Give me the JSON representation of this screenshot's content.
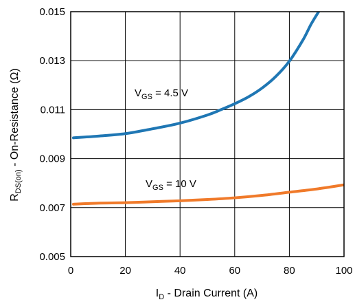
{
  "chart_data": {
    "type": "line",
    "xlabel": {
      "main": "I",
      "sub": "D",
      "rest": " - Drain Current (A)"
    },
    "ylabel": {
      "main": "R",
      "sub": "DS(on)",
      "rest": " - On-Resistance (Ω)"
    },
    "xlim": [
      0,
      100
    ],
    "ylim": [
      0.005,
      0.015
    ],
    "x_ticks": [
      0,
      20,
      40,
      60,
      80,
      100
    ],
    "x_tick_labels": [
      "0",
      "20",
      "40",
      "60",
      "80",
      "100"
    ],
    "y_ticks": [
      0.005,
      0.007,
      0.009,
      0.011,
      0.013,
      0.015
    ],
    "y_tick_labels": [
      "0.005",
      "0.007",
      "0.009",
      "0.011",
      "0.013",
      "0.015"
    ],
    "grid": true,
    "series": [
      {
        "label": {
          "main": "V",
          "sub": "GS",
          "rest": " = 4.5 V"
        },
        "color": "#1f77b4",
        "x": [
          1,
          10,
          20,
          30,
          40,
          50,
          55,
          60,
          65,
          70,
          75,
          80,
          85,
          88,
          91
        ],
        "y": [
          0.00985,
          0.00992,
          0.01002,
          0.01022,
          0.01045,
          0.01078,
          0.011,
          0.01124,
          0.01152,
          0.01188,
          0.01235,
          0.01298,
          0.01385,
          0.0145,
          0.01505
        ]
      },
      {
        "label": {
          "main": "V",
          "sub": "GS",
          "rest": " = 10 V"
        },
        "color": "#f07a2a",
        "x": [
          1,
          10,
          20,
          30,
          40,
          50,
          60,
          70,
          80,
          90,
          100
        ],
        "y": [
          0.00714,
          0.00718,
          0.0072,
          0.00724,
          0.00728,
          0.00733,
          0.0074,
          0.0075,
          0.00763,
          0.00776,
          0.00793
        ]
      }
    ]
  }
}
